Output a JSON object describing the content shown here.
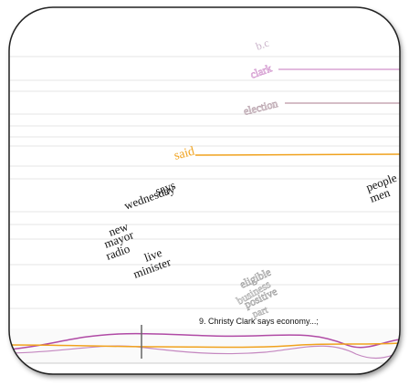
{
  "words": [
    "b.c",
    "clark",
    "election",
    "said",
    "says",
    "wednesday",
    "new",
    "mayor",
    "radio",
    "live",
    "minister",
    "people",
    "men",
    "eligible",
    "business",
    "positive",
    "part"
  ],
  "caption": "9. Christy Clark says economy...;"
}
